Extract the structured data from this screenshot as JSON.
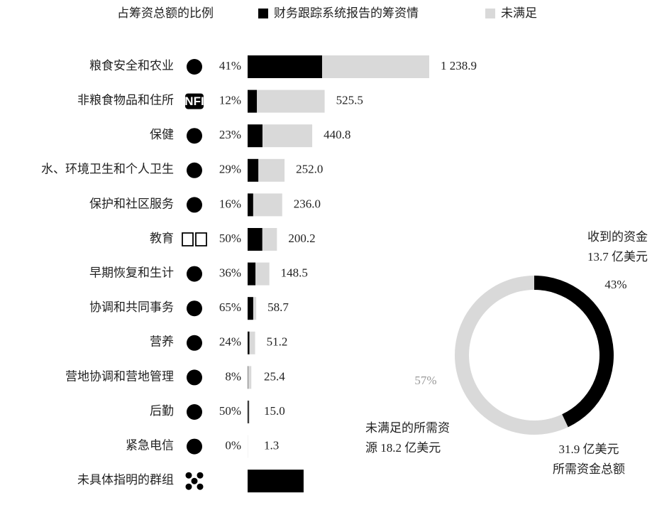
{
  "chart_data": {
    "type": "funding_bars",
    "legend": {
      "pct_header": "占筹资总额的比例",
      "funded": "财务跟踪系统报告的筹资情",
      "unmet": "未满足"
    },
    "funded_color": "#000000",
    "unmet_color": "#d9d9d9",
    "categories": [
      "粮食安全和农业",
      "非粮食物品和住所",
      "保健",
      "水、环境卫生和个人卫生",
      "保护和社区服务",
      "教育",
      "早期恢复和生计",
      "协调和共同事务",
      "营养",
      "营地协调和营地管理",
      "后勤",
      "紧急电信",
      "未具体指明的群组"
    ],
    "values": [
      1238.9,
      525.5,
      440.8,
      252.0,
      236.0,
      200.2,
      148.5,
      58.7,
      51.2,
      25.4,
      15.0,
      1.3,
      null
    ],
    "value_labels": [
      "1 238.9",
      "525.5",
      "440.8",
      "252.0",
      "236.0",
      "200.2",
      "148.5",
      "58.7",
      "51.2",
      "25.4",
      "15.0",
      "1.3",
      null
    ],
    "funded_pct": [
      41,
      12,
      23,
      29,
      16,
      50,
      36,
      65,
      24,
      8,
      50,
      0,
      null
    ],
    "funded_pct_labels": [
      "41%",
      "12%",
      "23%",
      "29%",
      "16%",
      "50%",
      "36%",
      "65%",
      "24%",
      "8%",
      "50%",
      "0%",
      null
    ],
    "unspecified_funded": 382,
    "nfi_icon": "NFI",
    "donut": {
      "type": "pie",
      "values": [
        43,
        57
      ],
      "value_labels": [
        "43%",
        "57%"
      ],
      "colors": [
        "#000000",
        "#d9d9d9"
      ],
      "received_label": [
        "收到的资金",
        "13.7 亿美元"
      ],
      "unmet_label": [
        "未满足的所需资",
        "源 18.2 亿美元"
      ],
      "total_label": [
        "31.9 亿美元",
        "所需资金总额"
      ]
    }
  }
}
